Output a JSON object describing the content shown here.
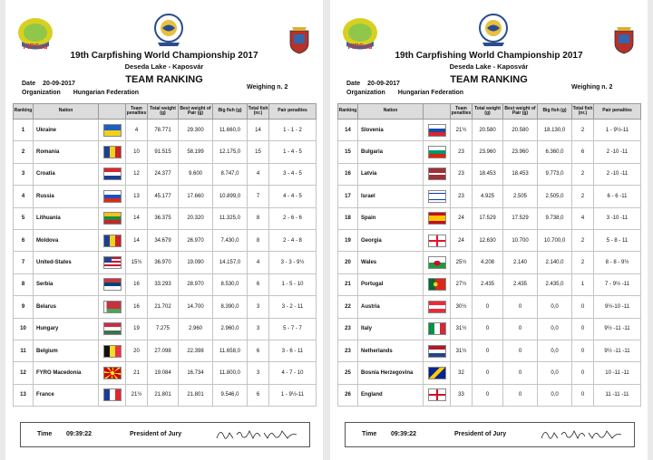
{
  "pages": [
    {
      "logo_text": "FIPSed",
      "title": "19th Carpfishing World Championship 2017",
      "subtitle": "Deseda Lake - Kaposvár",
      "date_label": "Date",
      "date": "20-09-2017",
      "heading": "TEAM RANKING",
      "weighing": "Weighing n. 2",
      "org_label": "Organization",
      "org": "Hungarian Federation",
      "columns": [
        "Ranking",
        "Nation",
        "",
        "Team penalties",
        "Total weight (g)",
        "Best weight of Pair (g)",
        "Big fish (g)",
        "Total fish (nr.)",
        "Pair penalties"
      ],
      "rows": [
        {
          "rank": "1",
          "nation": "Ukraine",
          "flag": "flag-ukraine",
          "team_pen": "4",
          "total": "78.771",
          "best": "29.300",
          "big": "11.660,0",
          "fish": "14",
          "pair_pen": "1 - 1 - 2"
        },
        {
          "rank": "2",
          "nation": "Romania",
          "flag": "flag-romania",
          "team_pen": "10",
          "total": "91.515",
          "best": "58.199",
          "big": "12.175,0",
          "fish": "15",
          "pair_pen": "1 - 4 - 5"
        },
        {
          "rank": "3",
          "nation": "Croatia",
          "flag": "flag-croatia",
          "team_pen": "12",
          "total": "24.377",
          "best": "9.600",
          "big": "8.747,0",
          "fish": "4",
          "pair_pen": "3 - 4 - 5"
        },
        {
          "rank": "4",
          "nation": "Russia",
          "flag": "flag-russia",
          "team_pen": "13",
          "total": "45.177",
          "best": "17.660",
          "big": "10.899,0",
          "fish": "7",
          "pair_pen": "4 - 4 - 5"
        },
        {
          "rank": "5",
          "nation": "Lithuania",
          "flag": "flag-lithuania",
          "team_pen": "14",
          "total": "36.375",
          "best": "20.320",
          "big": "11.325,0",
          "fish": "8",
          "pair_pen": "2 - 6 - 6"
        },
        {
          "rank": "6",
          "nation": "Moldova",
          "flag": "flag-moldova",
          "team_pen": "14",
          "total": "34.679",
          "best": "26.970",
          "big": "7.430,0",
          "fish": "8",
          "pair_pen": "2 - 4 - 8"
        },
        {
          "rank": "7",
          "nation": "United-States",
          "flag": "flag-usa",
          "team_pen": "15½",
          "total": "36.970",
          "best": "19.090",
          "big": "14.157,0",
          "fish": "4",
          "pair_pen": "3 - 3 - 9½"
        },
        {
          "rank": "8",
          "nation": "Serbia",
          "flag": "flag-serbia",
          "team_pen": "16",
          "total": "33.293",
          "best": "28.970",
          "big": "8.530,0",
          "fish": "6",
          "pair_pen": "1 - 5 - 10"
        },
        {
          "rank": "9",
          "nation": "Belarus",
          "flag": "flag-belarus",
          "team_pen": "16",
          "total": "21.702",
          "best": "14.700",
          "big": "8.390,0",
          "fish": "3",
          "pair_pen": "3 - 2 - 11"
        },
        {
          "rank": "10",
          "nation": "Hungary",
          "flag": "flag-hungary",
          "team_pen": "19",
          "total": "7.275",
          "best": "2.960",
          "big": "2.960,0",
          "fish": "3",
          "pair_pen": "5 - 7 - 7"
        },
        {
          "rank": "11",
          "nation": "Belgium",
          "flag": "flag-belgium",
          "team_pen": "20",
          "total": "27.098",
          "best": "22.398",
          "big": "11.658,0",
          "fish": "6",
          "pair_pen": "3 - 6 - 11"
        },
        {
          "rank": "12",
          "nation": "FYRO Macedonia",
          "flag": "flag-macedonia",
          "team_pen": "21",
          "total": "19.084",
          "best": "16.734",
          "big": "11.800,0",
          "fish": "3",
          "pair_pen": "4 - 7 - 10"
        },
        {
          "rank": "13",
          "nation": "France",
          "flag": "flag-france",
          "team_pen": "21½",
          "total": "21.801",
          "best": "21.801",
          "big": "9.546,0",
          "fish": "6",
          "pair_pen": "1 - 9½-11"
        }
      ],
      "footer": {
        "time_label": "Time",
        "time": "09:39:22",
        "president_label": "President of Jury"
      }
    },
    {
      "logo_text": "FIPSed",
      "title": "19th Carpfishing World Championship 2017",
      "subtitle": "Deseda Lake - Kaposvár",
      "date_label": "Date",
      "date": "20-09-2017",
      "heading": "TEAM RANKING",
      "weighing": "Weighing n. 2",
      "org_label": "Organization",
      "org": "Hungarian Federation",
      "columns": [
        "Ranking",
        "Nation",
        "",
        "Team penalties",
        "Total weight (g)",
        "Best weight of Pair (g)",
        "Big fish (g)",
        "Total fish (nr.)",
        "Pair penalties"
      ],
      "rows": [
        {
          "rank": "14",
          "nation": "Slovenia",
          "flag": "flag-slovenia",
          "team_pen": "21½",
          "total": "20.580",
          "best": "20.580",
          "big": "18.130,0",
          "fish": "2",
          "pair_pen": "1 - 9½-11"
        },
        {
          "rank": "15",
          "nation": "Bulgaria",
          "flag": "flag-bulgaria",
          "team_pen": "23",
          "total": "23.960",
          "best": "23.960",
          "big": "6.360,0",
          "fish": "6",
          "pair_pen": "2 -10 -11"
        },
        {
          "rank": "16",
          "nation": "Latvia",
          "flag": "flag-latvia",
          "team_pen": "23",
          "total": "18.453",
          "best": "18.453",
          "big": "9.773,0",
          "fish": "2",
          "pair_pen": "2 -10 -11"
        },
        {
          "rank": "17",
          "nation": "Israel",
          "flag": "flag-israel",
          "team_pen": "23",
          "total": "4.925",
          "best": "2.505",
          "big": "2.505,0",
          "fish": "2",
          "pair_pen": "6 - 6 -11"
        },
        {
          "rank": "18",
          "nation": "Spain",
          "flag": "flag-spain",
          "team_pen": "24",
          "total": "17.529",
          "best": "17.529",
          "big": "9.738,0",
          "fish": "4",
          "pair_pen": "3 -10 -11"
        },
        {
          "rank": "19",
          "nation": "Georgia",
          "flag": "flag-georgia",
          "team_pen": "24",
          "total": "12.630",
          "best": "10.700",
          "big": "10.700,0",
          "fish": "2",
          "pair_pen": "5 - 8 - 11"
        },
        {
          "rank": "20",
          "nation": "Wales",
          "flag": "flag-wales",
          "team_pen": "25½",
          "total": "4.208",
          "best": "2.140",
          "big": "2.140,0",
          "fish": "2",
          "pair_pen": "8 - 8 - 9½"
        },
        {
          "rank": "21",
          "nation": "Portugal",
          "flag": "flag-portugal",
          "team_pen": "27½",
          "total": "2.435",
          "best": "2.435",
          "big": "2.435,0",
          "fish": "1",
          "pair_pen": "7 - 9½ -11"
        },
        {
          "rank": "22",
          "nation": "Austria",
          "flag": "flag-austria",
          "team_pen": "30½",
          "total": "0",
          "best": "0",
          "big": "0,0",
          "fish": "0",
          "pair_pen": "9½-10 -11"
        },
        {
          "rank": "23",
          "nation": "Italy",
          "flag": "flag-italy",
          "team_pen": "31½",
          "total": "0",
          "best": "0",
          "big": "0,0",
          "fish": "0",
          "pair_pen": "9½ -11 -11"
        },
        {
          "rank": "23",
          "nation": "Netherlands",
          "flag": "flag-netherlands",
          "team_pen": "31½",
          "total": "0",
          "best": "0",
          "big": "0,0",
          "fish": "0",
          "pair_pen": "9½ -11 -11"
        },
        {
          "rank": "25",
          "nation": "Bosnia Herzegovina",
          "flag": "flag-bosnia",
          "team_pen": "32",
          "total": "0",
          "best": "0",
          "big": "0,0",
          "fish": "0",
          "pair_pen": "10 -11 -11"
        },
        {
          "rank": "26",
          "nation": "England",
          "flag": "flag-england",
          "team_pen": "33",
          "total": "0",
          "best": "0",
          "big": "0,0",
          "fish": "0",
          "pair_pen": "11 -11 -11"
        }
      ],
      "footer": {
        "time_label": "Time",
        "time": "09:39:22",
        "president_label": "President of Jury"
      }
    }
  ]
}
